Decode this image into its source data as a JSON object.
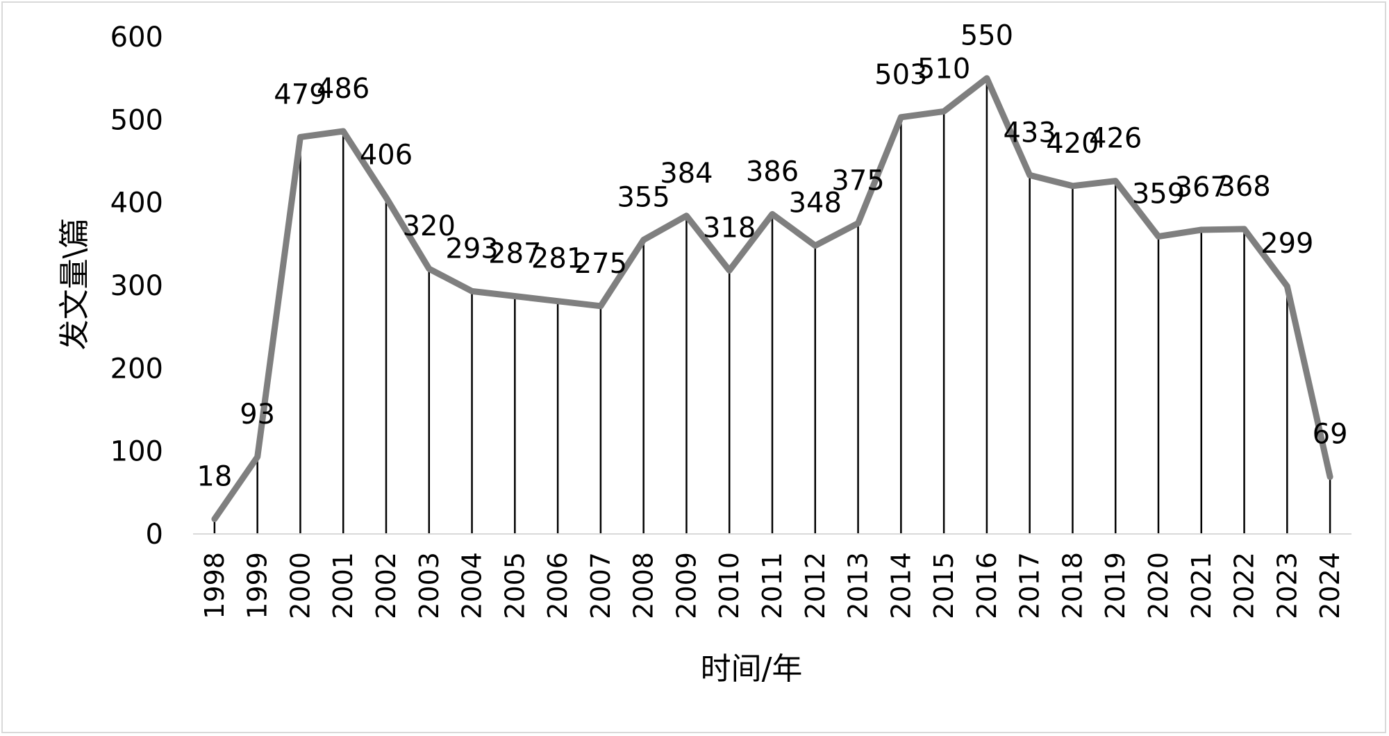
{
  "chart_data": {
    "type": "line",
    "xlabel": "时间/年",
    "ylabel": "发文量\\篇",
    "ylim": [
      0,
      600
    ],
    "yticks": [
      "0",
      "100",
      "200",
      "300",
      "400",
      "500",
      "600"
    ],
    "grid": false,
    "drop_lines": true,
    "colors": {
      "line": "#7f7f7f",
      "drop": "#000000",
      "axis": "#d9d9d9"
    },
    "categories": [
      "1998",
      "1999",
      "2000",
      "2001",
      "2002",
      "2003",
      "2004",
      "2005",
      "2006",
      "2007",
      "2008",
      "2009",
      "2010",
      "2011",
      "2012",
      "2013",
      "2014",
      "2015",
      "2016",
      "2017",
      "2018",
      "2019",
      "2020",
      "2021",
      "2022",
      "2023",
      "2024"
    ],
    "values": [
      18,
      93,
      479,
      486,
      406,
      320,
      293,
      287,
      281,
      275,
      355,
      384,
      318,
      386,
      348,
      375,
      503,
      510,
      550,
      433,
      420,
      426,
      359,
      367,
      368,
      299,
      69
    ],
    "data_labels": [
      "18",
      "93",
      "479",
      "486",
      "406",
      "320",
      "293",
      "287",
      "281",
      "275",
      "355",
      "384",
      "318",
      "386",
      "348",
      "375",
      "503",
      "510",
      "550",
      "433",
      "420",
      "426",
      "359",
      "367",
      "368",
      "299",
      "69"
    ]
  }
}
